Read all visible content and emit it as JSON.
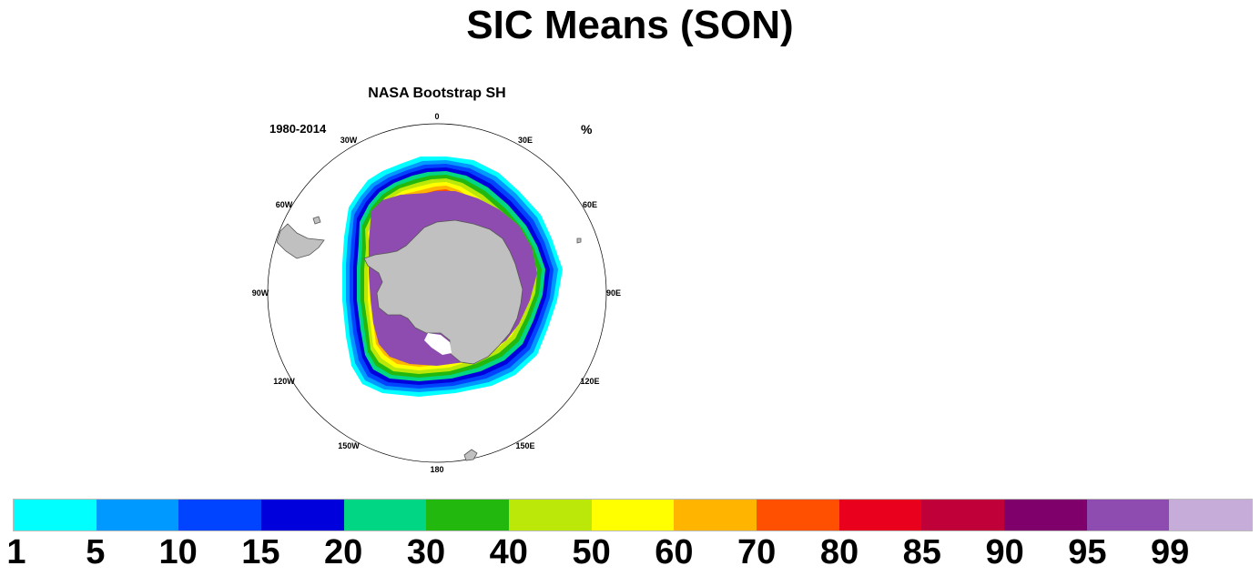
{
  "title": "SIC Means (SON)",
  "panel": {
    "title": "NASA Bootstrap SH",
    "period": "1980-2014",
    "units": "%",
    "longitude_labels": [
      "0",
      "30E",
      "60E",
      "90E",
      "120E",
      "150E",
      "180",
      "150W",
      "120W",
      "90W",
      "60W",
      "30W"
    ]
  },
  "colorbar": {
    "levels": [
      "1",
      "5",
      "10",
      "15",
      "20",
      "30",
      "40",
      "50",
      "60",
      "70",
      "80",
      "85",
      "90",
      "95",
      "99"
    ],
    "colors": [
      "#00ffff",
      "#0099ff",
      "#0044ff",
      "#0000dd",
      "#00d683",
      "#22b80e",
      "#bbe809",
      "#ffff00",
      "#ffb500",
      "#ff4f00",
      "#e8001d",
      "#c00038",
      "#80006b",
      "#8e4cb0",
      "#c6acd8"
    ]
  },
  "colors": {
    "land": "#c0c0c0",
    "coast": "#555555"
  }
}
